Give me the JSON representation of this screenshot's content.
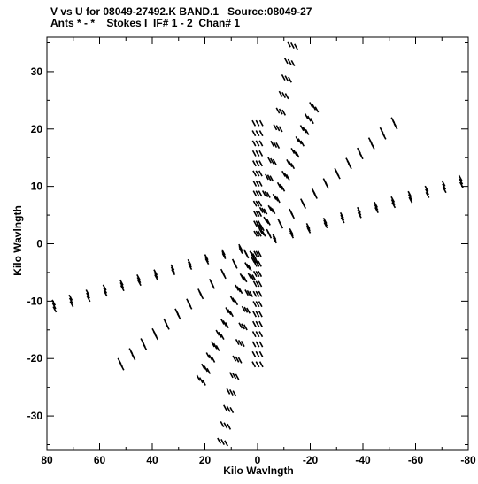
{
  "chart_data": {
    "type": "scatter",
    "title": "V vs U for 08049-27492.K BAND.1   Source:08049-27",
    "subtitle": "Ants * - *    Stokes I  IF# 1 - 2  Chan# 1",
    "xlabel": "Kilo Wavlngth",
    "ylabel": "Kilo Wavlngth",
    "xlim": [
      80,
      -80
    ],
    "ylim": [
      -36,
      36
    ],
    "xticks": [
      80,
      60,
      40,
      20,
      0,
      -20,
      -40,
      -60,
      -80
    ],
    "yticks": [
      30,
      20,
      10,
      0,
      -10,
      -20,
      -30
    ],
    "grid": false,
    "arms": [
      {
        "angle_deg": 90,
        "r_max": 21
      },
      {
        "angle_deg": 111,
        "r_max": 37
      },
      {
        "angle_deg": 132,
        "r_max": 32
      },
      {
        "angle_deg": 158,
        "r_max": 56
      },
      {
        "angle_deg": 172,
        "r_max": 78
      }
    ],
    "spokes_per_arm": 12,
    "track_tilt_deg": 40,
    "track_len_kl": 1.5
  }
}
